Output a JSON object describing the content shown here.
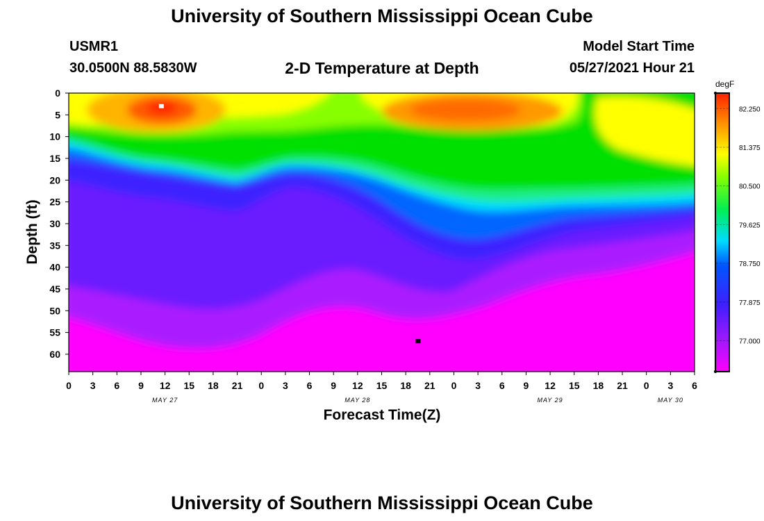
{
  "header": {
    "title": "University of Southern Mississippi Ocean Cube",
    "station": "USMR1",
    "coords": "30.0500N  88.5830W",
    "subtitle": "2-D Temperature at Depth",
    "model_start_label": "Model Start Time",
    "model_start_value": "05/27/2021 Hour 21"
  },
  "footer": {
    "title": "University of Southern Mississippi Ocean Cube"
  },
  "chart_data": {
    "type": "heatmap",
    "title": "2-D Temperature at Depth",
    "xlabel": "Forecast Time(Z)",
    "ylabel": "Depth (ft)",
    "x_ticks": [
      "0",
      "3",
      "6",
      "9",
      "12",
      "15",
      "18",
      "21",
      "0",
      "3",
      "6",
      "9",
      "12",
      "15",
      "18",
      "21",
      "0",
      "3",
      "6",
      "9",
      "12",
      "15",
      "18",
      "21",
      "0",
      "3",
      "6"
    ],
    "x_range_hours": [
      0,
      78
    ],
    "date_labels": [
      {
        "text": "MAY 27",
        "hour": 12
      },
      {
        "text": "MAY 28",
        "hour": 36
      },
      {
        "text": "MAY 29",
        "hour": 60
      },
      {
        "text": "MAY 30",
        "hour": 75
      }
    ],
    "y_ticks": [
      "0",
      "5",
      "10",
      "15",
      "20",
      "25",
      "30",
      "35",
      "40",
      "45",
      "50",
      "55",
      "60"
    ],
    "y_range_ft": [
      0,
      64
    ],
    "colorbar": {
      "unit": "degF",
      "min": 76.3,
      "max": 82.6,
      "labels": [
        "82.250",
        "81.375",
        "80.500",
        "79.625",
        "78.750",
        "77.875",
        "77.000"
      ]
    },
    "markers": [
      {
        "name": "max-temp-marker",
        "hour": 11.5,
        "depth": 3,
        "color": "#ffffff"
      },
      {
        "name": "min-temp-marker",
        "hour": 43.5,
        "depth": 57,
        "color": "#000000"
      }
    ]
  }
}
